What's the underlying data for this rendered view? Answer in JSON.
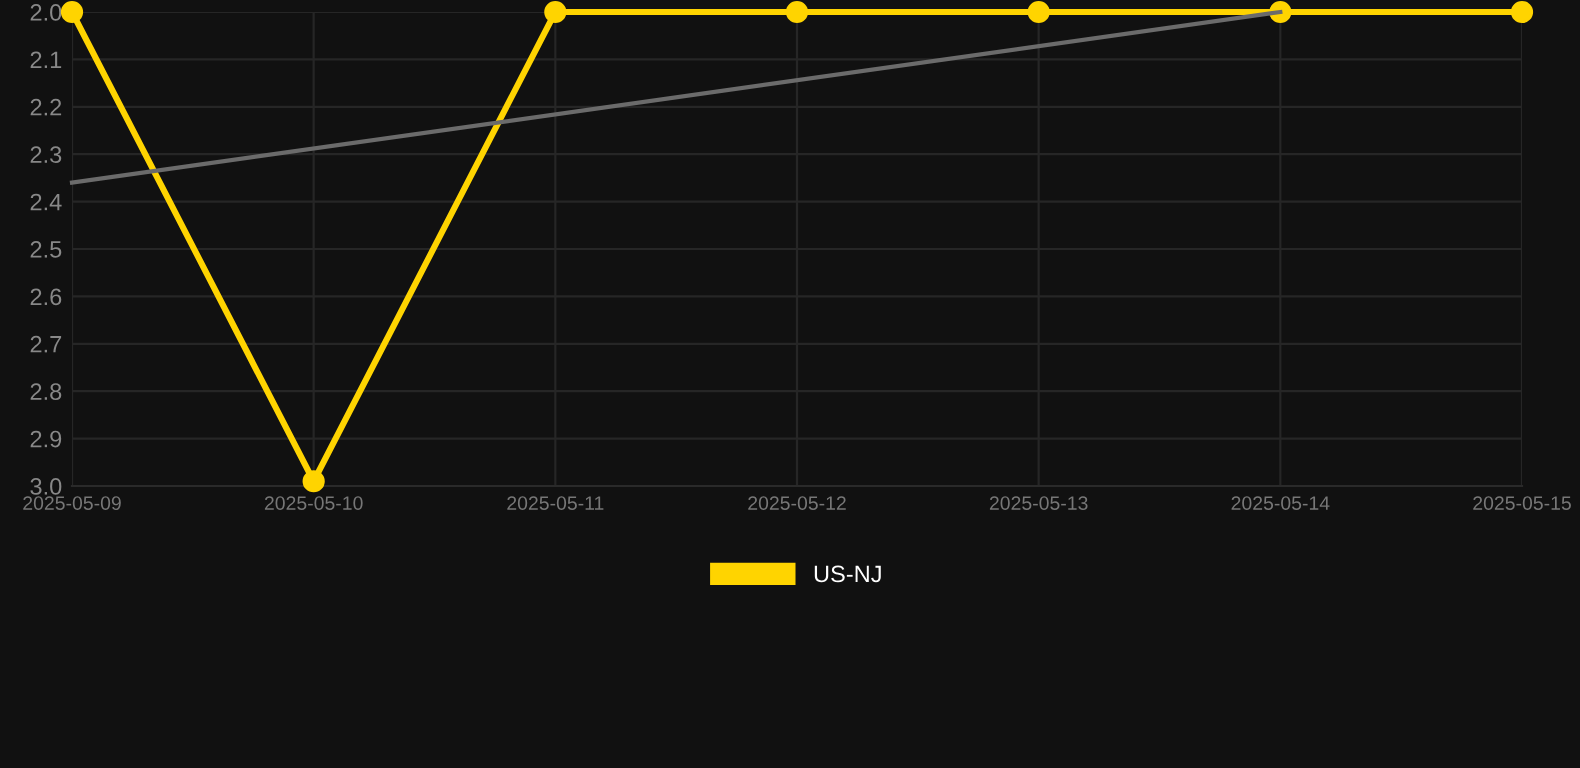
{
  "chart_data": {
    "type": "line",
    "x": [
      "2025-05-09",
      "2025-05-10",
      "2025-05-11",
      "2025-05-12",
      "2025-05-13",
      "2025-05-14",
      "2025-05-15"
    ],
    "series": [
      {
        "name": "US-NJ",
        "color": "#ffd400",
        "values": [
          2.0,
          2.99,
          2.0,
          2.0,
          2.0,
          2.0,
          2.0
        ],
        "marker": "circle"
      },
      {
        "type": "line",
        "color": "#6b6b6b",
        "x": [
          "2025-05-09",
          "2025-05-14"
        ],
        "values": [
          2.36,
          2.0
        ],
        "marker": "none"
      }
    ],
    "xlim": [
      "2025-05-09",
      "2025-05-15"
    ],
    "xticks": [
      {
        "value": "2025-05-09",
        "label": "2025-05-09"
      },
      {
        "value": "2025-05-10",
        "label": "2025-05-10"
      },
      {
        "value": "2025-05-11",
        "label": "2025-05-11"
      },
      {
        "value": "2025-05-12",
        "label": "2025-05-12"
      },
      {
        "value": "2025-05-13",
        "label": "2025-05-13"
      },
      {
        "value": "2025-05-14",
        "label": "2025-05-14"
      },
      {
        "value": "2025-05-15",
        "label": "2025-05-15"
      }
    ],
    "ylim": [
      3.0,
      2.0
    ],
    "yticks": [
      {
        "value": 2.0,
        "label": "2.0"
      },
      {
        "value": 2.1,
        "label": "2.1"
      },
      {
        "value": 2.2,
        "label": "2.2"
      },
      {
        "value": 2.3,
        "label": "2.3"
      },
      {
        "value": 2.4,
        "label": "2.4"
      },
      {
        "value": 2.5,
        "label": "2.5"
      },
      {
        "value": 2.6,
        "label": "2.6"
      },
      {
        "value": 2.7,
        "label": "2.7"
      },
      {
        "value": 2.8,
        "label": "2.8"
      },
      {
        "value": 2.9,
        "label": "2.9"
      },
      {
        "value": 3.0,
        "label": "3.0"
      }
    ],
    "grid": true,
    "legend": "bottom",
    "line_style": "solid"
  }
}
